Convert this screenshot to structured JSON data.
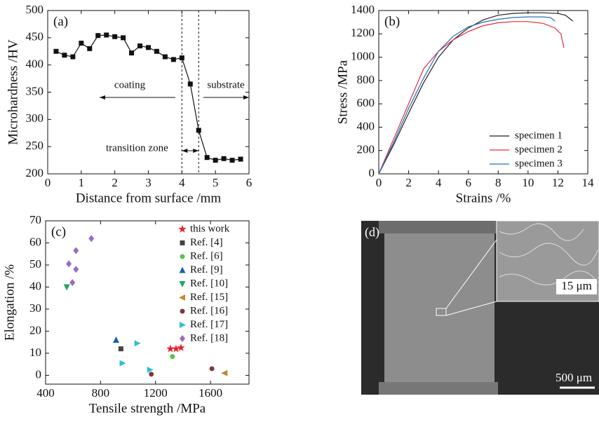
{
  "chart_data": [
    {
      "type": "line",
      "label": "(a)",
      "x_label": "Distance from surface /mm",
      "y_label": "Microhardness /HV",
      "x": [
        0.25,
        0.5,
        0.75,
        1.0,
        1.25,
        1.5,
        1.75,
        2.0,
        2.25,
        2.5,
        2.75,
        3.0,
        3.25,
        3.5,
        3.75,
        4.0,
        4.25,
        4.5,
        4.75,
        5.0,
        5.25,
        5.5,
        5.75
      ],
      "values": [
        425,
        418,
        415,
        440,
        430,
        454,
        455,
        452,
        450,
        422,
        435,
        432,
        425,
        415,
        410,
        413,
        365,
        280,
        230,
        225,
        228,
        225,
        227
      ],
      "color": "#111111",
      "marker": "square",
      "vlines": [
        4,
        4.5
      ],
      "annotations": [
        "coating",
        "substrate",
        "transition zone"
      ],
      "xlim": [
        0,
        6
      ],
      "xticks": [
        0,
        1,
        2,
        3,
        4,
        5,
        6
      ],
      "ylim": [
        200,
        500
      ],
      "yticks": [
        200,
        250,
        300,
        350,
        400,
        450,
        500
      ]
    },
    {
      "type": "line",
      "label": "(b)",
      "x_label": "Strains /%",
      "y_label": "Stress /MPa",
      "legend": "lower right",
      "series": [
        {
          "name": "specimen 1",
          "color": "#222222",
          "x": [
            0,
            1,
            2,
            3,
            4,
            5,
            6,
            7,
            8,
            9,
            10,
            11,
            12,
            12.5,
            12.8,
            13
          ],
          "values": [
            0,
            250,
            520,
            780,
            1000,
            1150,
            1250,
            1320,
            1360,
            1375,
            1380,
            1380,
            1375,
            1360,
            1330,
            1310
          ]
        },
        {
          "name": "specimen 2",
          "color": "#e0303a",
          "x": [
            0,
            1,
            2,
            3,
            4,
            5,
            6,
            7,
            8,
            9,
            10,
            11,
            11.8,
            12.2,
            12.4
          ],
          "values": [
            0,
            300,
            600,
            900,
            1050,
            1150,
            1220,
            1270,
            1295,
            1305,
            1305,
            1290,
            1250,
            1200,
            1080
          ]
        },
        {
          "name": "specimen 3",
          "color": "#2a6db5",
          "x": [
            0,
            1,
            2,
            3,
            4,
            5,
            6,
            7,
            8,
            9,
            10,
            11,
            11.5,
            11.8
          ],
          "values": [
            0,
            270,
            560,
            820,
            1050,
            1180,
            1260,
            1300,
            1325,
            1340,
            1345,
            1345,
            1340,
            1310
          ]
        }
      ],
      "xlim": [
        0,
        14
      ],
      "xticks": [
        0,
        2,
        4,
        6,
        8,
        10,
        12,
        14
      ],
      "ylim": [
        0,
        1400
      ],
      "yticks": [
        0,
        200,
        400,
        600,
        800,
        1000,
        1200,
        1400
      ]
    },
    {
      "type": "scatter",
      "label": "(c)",
      "x_label": "Tensile strength /MPa",
      "y_label": "Elongation /%",
      "legend": "upper right",
      "series": [
        {
          "name": "this work",
          "color": "#e8202a",
          "marker": "star",
          "x": [
            1308,
            1349,
            1385
          ],
          "values": [
            12,
            12,
            12.5
          ]
        },
        {
          "name": "Ref. [4]",
          "color": "#444444",
          "marker": "square",
          "x": [
            948
          ],
          "values": [
            12
          ]
        },
        {
          "name": "Ref. [6]",
          "color": "#5cc04a",
          "marker": "circle",
          "x": [
            1323
          ],
          "values": [
            8.5
          ]
        },
        {
          "name": "Ref. [9]",
          "color": "#1f5fa8",
          "marker": "triangle-up",
          "x": [
            913
          ],
          "values": [
            16
          ]
        },
        {
          "name": "Ref. [10]",
          "color": "#1fa860",
          "marker": "triangle-down",
          "x": [
            554
          ],
          "values": [
            40
          ]
        },
        {
          "name": "Ref. [15]",
          "color": "#c08a30",
          "marker": "triangle-left",
          "x": [
            1703
          ],
          "values": [
            1
          ]
        },
        {
          "name": "Ref. [16]",
          "color": "#7a3a40",
          "marker": "circle",
          "x": [
            1169,
            1610
          ],
          "values": [
            0.5,
            3
          ]
        },
        {
          "name": "Ref. [17]",
          "color": "#30c0d0",
          "marker": "triangle-right",
          "x": [
            959,
            1067,
            1159
          ],
          "values": [
            5.5,
            14.5,
            2.5
          ]
        },
        {
          "name": "Ref. [18]",
          "color": "#9a6ac0",
          "marker": "diamond",
          "x": [
            569,
            595,
            621,
            621,
            733
          ],
          "values": [
            50.5,
            42,
            48,
            56.5,
            62
          ]
        }
      ],
      "xlim": [
        400,
        1880
      ],
      "xticks": [
        400,
        800,
        1200,
        1600
      ],
      "ylim": [
        -4,
        70
      ],
      "yticks": [
        0,
        10,
        20,
        30,
        40,
        50,
        60,
        70
      ]
    }
  ],
  "image": {
    "label": "(d)",
    "inset_scale": "15 μm",
    "scale": "500 μm"
  }
}
